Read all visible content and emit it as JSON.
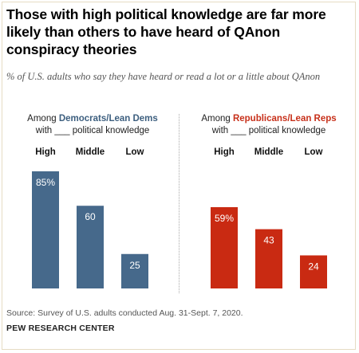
{
  "title": "Those with high political knowledge are far more likely than others to have heard of QAnon conspiracy theories",
  "subtitle": "% of U.S. adults who say they have heard or read a lot or a little about QAnon",
  "panels": [
    {
      "prefix": "Among ",
      "group": "Democrats/Lean Dems",
      "line2": "with ___ political knowledge"
    },
    {
      "prefix": "Among ",
      "group": "Republicans/Lean Reps",
      "line2": "with ___ political knowledge"
    }
  ],
  "chart_data": [
    {
      "type": "bar",
      "title": "Among Democrats/Lean Dems with ___ political knowledge",
      "categories": [
        "High",
        "Middle",
        "Low"
      ],
      "values": [
        85,
        60,
        25
      ],
      "labels": [
        "85%",
        "60",
        "25"
      ],
      "color": "#46698b",
      "ylim": [
        0,
        100
      ],
      "grid": false
    },
    {
      "type": "bar",
      "title": "Among Republicans/Lean Reps with ___ political knowledge",
      "categories": [
        "High",
        "Middle",
        "Low"
      ],
      "values": [
        59,
        43,
        24
      ],
      "labels": [
        "59%",
        "43",
        "24"
      ],
      "color": "#c92a12",
      "ylim": [
        0,
        100
      ],
      "grid": false
    }
  ],
  "source": "Source: Survey of U.S. adults conducted Aug. 31-Sept. 7, 2020.",
  "org": "PEW RESEARCH CENTER"
}
